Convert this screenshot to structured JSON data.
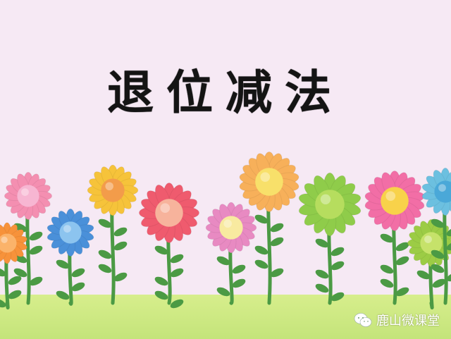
{
  "title": "退位减法",
  "watermark": {
    "icon": "wechat-icon",
    "text": "鹿山微课堂"
  },
  "colors": {
    "background": "#f6e9f4",
    "ground": "#c9e77c",
    "stem": "#4b9a44"
  }
}
